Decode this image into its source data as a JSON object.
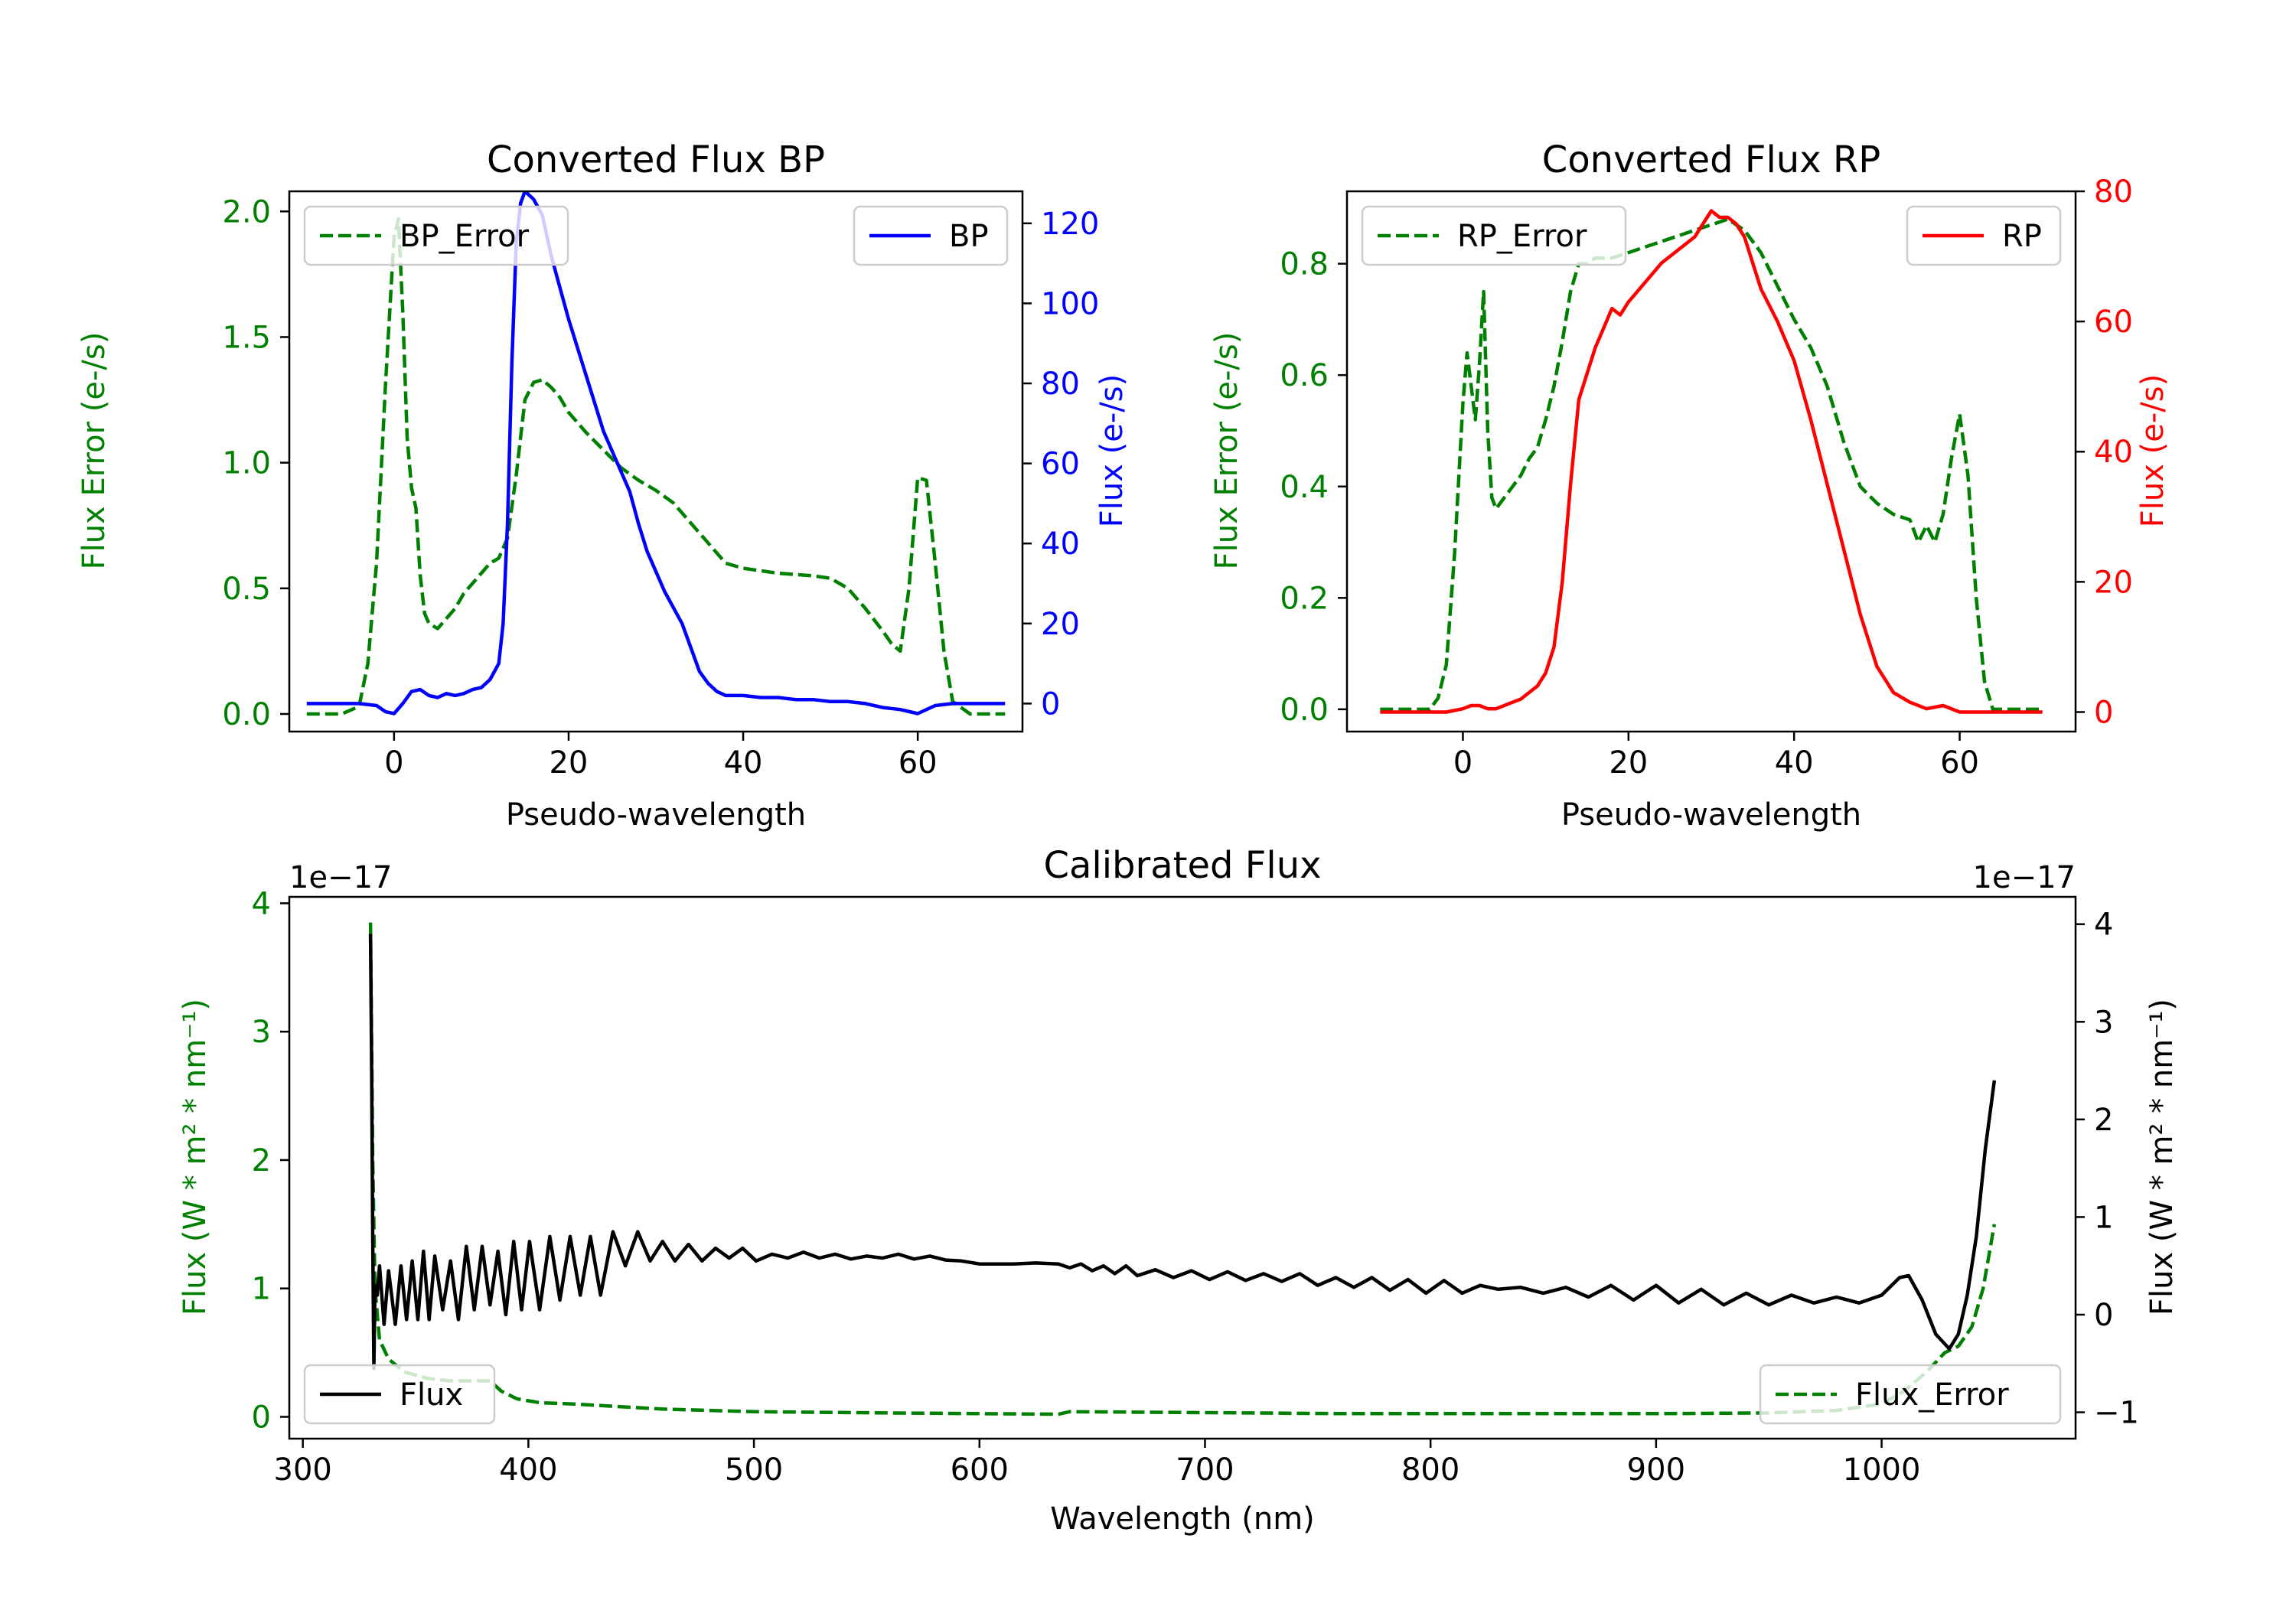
{
  "colors": {
    "green": "#008000",
    "blue": "#0000ff",
    "red": "#ff0000",
    "black": "#000000",
    "axis": "#000000"
  },
  "chart_data": [
    {
      "type": "line",
      "id": "bp",
      "title": "Converted Flux BP",
      "xlabel": "Pseudo-wavelength",
      "ylabel_left": "Flux Error (e-/s)",
      "ylabel_right": "Flux (e-/s)",
      "xlim": [
        -12,
        72
      ],
      "ylim_left": [
        -0.07,
        2.08
      ],
      "ylim_right": [
        -7,
        128
      ],
      "x_ticks": [
        0,
        20,
        40,
        60
      ],
      "x_tick_labels": [
        "0",
        "20",
        "40",
        "60"
      ],
      "y_left_ticks": [
        0.0,
        0.5,
        1.0,
        1.5,
        2.0
      ],
      "y_left_tick_labels": [
        "0.0",
        "0.5",
        "1.0",
        "1.5",
        "2.0"
      ],
      "y_right_ticks": [
        0,
        20,
        40,
        60,
        80,
        100,
        120
      ],
      "y_right_tick_labels": [
        "0",
        "20",
        "40",
        "60",
        "80",
        "100",
        "120"
      ],
      "series": [
        {
          "name": "BP_Error",
          "axis": "left",
          "color": "#008000",
          "style": "dashed",
          "legend": "BP_Error",
          "legend_position": "top-left",
          "x": [
            -10,
            -6,
            -4,
            -3,
            -2,
            -1,
            0,
            0.5,
            1,
            1.5,
            2,
            2.5,
            3,
            3.5,
            4,
            5,
            6,
            7,
            8,
            9,
            10,
            11,
            12,
            13,
            14,
            15,
            16,
            17,
            18,
            19,
            20,
            22,
            24,
            26,
            28,
            30,
            32,
            34,
            36,
            38,
            40,
            44,
            48,
            50,
            52,
            54,
            56,
            57,
            58,
            59,
            60,
            61,
            62,
            63,
            64,
            66,
            68,
            70
          ],
          "y": [
            0.0,
            0.0,
            0.03,
            0.2,
            0.6,
            1.3,
            1.9,
            1.97,
            1.6,
            1.1,
            0.9,
            0.82,
            0.55,
            0.4,
            0.36,
            0.34,
            0.38,
            0.42,
            0.48,
            0.52,
            0.56,
            0.6,
            0.62,
            0.7,
            0.95,
            1.25,
            1.32,
            1.33,
            1.3,
            1.26,
            1.2,
            1.12,
            1.05,
            0.98,
            0.93,
            0.89,
            0.84,
            0.76,
            0.68,
            0.6,
            0.58,
            0.56,
            0.55,
            0.54,
            0.5,
            0.42,
            0.33,
            0.28,
            0.25,
            0.5,
            0.94,
            0.93,
            0.6,
            0.25,
            0.05,
            0.0,
            0.0,
            0.0
          ]
        },
        {
          "name": "BP",
          "axis": "right",
          "color": "#0000ff",
          "style": "solid",
          "legend": "BP",
          "legend_position": "top-right",
          "x": [
            -10,
            -6,
            -4,
            -2,
            -1,
            0,
            1,
            2,
            3,
            4,
            5,
            6,
            7,
            8,
            9,
            10,
            11,
            12,
            12.5,
            13,
            13.5,
            14,
            14.5,
            15,
            15.5,
            16,
            17,
            18,
            19,
            20,
            21,
            22,
            23,
            24,
            25,
            26,
            27,
            28,
            29,
            30,
            31,
            32,
            33,
            34,
            35,
            36,
            37,
            38,
            40,
            42,
            44,
            46,
            48,
            50,
            52,
            54,
            56,
            58,
            60,
            62,
            64,
            66,
            70
          ],
          "y": [
            0,
            0,
            0,
            -0.5,
            -2,
            -2.5,
            0,
            3,
            3.5,
            2,
            1.5,
            2.5,
            2,
            2.5,
            3.5,
            4,
            6,
            10,
            20,
            45,
            85,
            115,
            125,
            128,
            127,
            126,
            122,
            112,
            104,
            96,
            89,
            82,
            75,
            68,
            63,
            58,
            53,
            45,
            38,
            33,
            28,
            24,
            20,
            14,
            8,
            5,
            3,
            2,
            2,
            1.5,
            1.5,
            1,
            1,
            0.5,
            0.5,
            0,
            -1,
            -1.5,
            -2.5,
            -0.5,
            0,
            0,
            0
          ]
        }
      ]
    },
    {
      "type": "line",
      "id": "rp",
      "title": "Converted Flux RP",
      "xlabel": "Pseudo-wavelength",
      "ylabel_left": "Flux Error (e-/s)",
      "ylabel_right": "Flux (e-/s)",
      "xlim": [
        -14,
        74
      ],
      "ylim_left": [
        -0.04,
        0.93
      ],
      "ylim_right": [
        -3,
        80
      ],
      "x_ticks": [
        0,
        20,
        40,
        60
      ],
      "x_tick_labels": [
        "0",
        "20",
        "40",
        "60"
      ],
      "y_left_ticks": [
        0.0,
        0.2,
        0.4,
        0.6,
        0.8
      ],
      "y_left_tick_labels": [
        "0.0",
        "0.2",
        "0.4",
        "0.6",
        "0.8"
      ],
      "y_right_ticks": [
        0,
        20,
        40,
        60,
        80
      ],
      "y_right_tick_labels": [
        "0",
        "20",
        "40",
        "60",
        "80"
      ],
      "series": [
        {
          "name": "RP_Error",
          "axis": "left",
          "color": "#008000",
          "style": "dashed",
          "legend": "RP_Error",
          "legend_position": "top-left",
          "x": [
            -10,
            -6,
            -4,
            -3,
            -2,
            -1,
            0,
            0.5,
            1,
            1.5,
            2,
            2.5,
            3,
            3.5,
            4,
            5,
            6,
            7,
            8,
            9,
            10,
            11,
            12,
            13,
            14,
            15,
            16,
            18,
            20,
            22,
            24,
            26,
            28,
            30,
            32,
            34,
            36,
            38,
            40,
            42,
            44,
            46,
            48,
            50,
            52,
            54,
            55,
            56,
            57,
            58,
            59,
            60,
            61,
            62,
            63,
            64,
            66,
            70
          ],
          "y": [
            0.0,
            0.0,
            0.0,
            0.02,
            0.08,
            0.28,
            0.55,
            0.64,
            0.58,
            0.52,
            0.62,
            0.75,
            0.5,
            0.38,
            0.36,
            0.38,
            0.4,
            0.42,
            0.45,
            0.47,
            0.52,
            0.58,
            0.66,
            0.75,
            0.8,
            0.8,
            0.81,
            0.81,
            0.82,
            0.83,
            0.84,
            0.85,
            0.86,
            0.87,
            0.88,
            0.86,
            0.82,
            0.76,
            0.7,
            0.65,
            0.58,
            0.48,
            0.4,
            0.37,
            0.35,
            0.34,
            0.3,
            0.33,
            0.3,
            0.35,
            0.45,
            0.53,
            0.42,
            0.2,
            0.05,
            0.0,
            0.0,
            0.0
          ]
        },
        {
          "name": "RP",
          "axis": "right",
          "color": "#ff0000",
          "style": "solid",
          "legend": "RP",
          "legend_position": "top-right",
          "x": [
            -10,
            -6,
            -4,
            -2,
            0,
            1,
            2,
            3,
            4,
            5,
            6,
            7,
            8,
            9,
            10,
            11,
            12,
            13,
            14,
            15,
            16,
            17,
            18,
            19,
            20,
            22,
            24,
            26,
            28,
            30,
            31,
            32,
            33,
            34,
            35,
            36,
            38,
            40,
            42,
            44,
            46,
            48,
            50,
            52,
            54,
            56,
            58,
            60,
            62,
            66,
            70
          ],
          "y": [
            0,
            0,
            0,
            0,
            0.5,
            1,
            1,
            0.5,
            0.5,
            1,
            1.5,
            2,
            3,
            4,
            6,
            10,
            20,
            35,
            48,
            52,
            56,
            59,
            62,
            61,
            63,
            66,
            69,
            71,
            73,
            77,
            76,
            76,
            75,
            73,
            69,
            65,
            60,
            54,
            45,
            35,
            25,
            15,
            7,
            3,
            1.5,
            0.5,
            1,
            0,
            0,
            0,
            0
          ]
        }
      ]
    },
    {
      "type": "line",
      "id": "calibrated",
      "title": "Calibrated Flux",
      "xlabel": "Wavelength (nm)",
      "ylabel_left": "Flux (W * m² * nm⁻¹)",
      "ylabel_right": "Flux (W * m² * nm⁻¹)",
      "offset_left": "1e−17",
      "offset_right": "1e−17",
      "xlim": [
        294,
        1086
      ],
      "ylim_left": [
        -0.17,
        4.05
      ],
      "ylim_right": [
        -1.27,
        4.28
      ],
      "x_ticks": [
        300,
        400,
        500,
        600,
        700,
        800,
        900,
        1000
      ],
      "x_tick_labels": [
        "300",
        "400",
        "500",
        "600",
        "700",
        "800",
        "900",
        "1000"
      ],
      "y_left_ticks": [
        0,
        1,
        2,
        3,
        4
      ],
      "y_left_tick_labels": [
        "0",
        "1",
        "2",
        "3",
        "4"
      ],
      "y_right_ticks": [
        -1,
        0,
        1,
        2,
        3,
        4
      ],
      "y_right_tick_labels": [
        "−1",
        "0",
        "1",
        "2",
        "3",
        "4"
      ],
      "series": [
        {
          "name": "Flux",
          "axis": "right",
          "color": "#000000",
          "style": "solid",
          "legend": "Flux",
          "legend_position": "bottom-left",
          "x": [
            330,
            330.5,
            331,
            331.5,
            332,
            333,
            334,
            336,
            338,
            341,
            343.5,
            346,
            348.5,
            351,
            353.5,
            356,
            358.5,
            362,
            365.5,
            369,
            372.5,
            376,
            379.5,
            383,
            386.5,
            390,
            393.5,
            397,
            400.5,
            405,
            409.5,
            414,
            418.5,
            423,
            427.5,
            432,
            437.5,
            443,
            448.5,
            454,
            459.5,
            465,
            471,
            477,
            483,
            489,
            495,
            501,
            508,
            515,
            522,
            529,
            536,
            543,
            550,
            557,
            564,
            571,
            578,
            585,
            592,
            600,
            615,
            625,
            635,
            640,
            645,
            650,
            655,
            660,
            665,
            670,
            678,
            686,
            694,
            702,
            710,
            718,
            726,
            734,
            742,
            750,
            758,
            766,
            774,
            782,
            790,
            798,
            806,
            814,
            822,
            830,
            840,
            850,
            860,
            870,
            880,
            890,
            900,
            910,
            920,
            930,
            940,
            950,
            960,
            970,
            980,
            990,
            1000,
            1008,
            1012,
            1018,
            1024,
            1030,
            1034,
            1038,
            1042,
            1046,
            1050
          ],
          "y": [
            3.9,
            2.5,
            0.8,
            -0.55,
            0.3,
            0.2,
            0.5,
            -0.1,
            0.45,
            -0.1,
            0.5,
            -0.05,
            0.55,
            -0.05,
            0.65,
            -0.05,
            0.6,
            0.05,
            0.55,
            -0.05,
            0.7,
            0.05,
            0.7,
            0.1,
            0.65,
            0.0,
            0.75,
            0.05,
            0.75,
            0.05,
            0.8,
            0.15,
            0.8,
            0.2,
            0.8,
            0.2,
            0.85,
            0.5,
            0.85,
            0.55,
            0.75,
            0.55,
            0.72,
            0.55,
            0.68,
            0.58,
            0.68,
            0.55,
            0.62,
            0.58,
            0.64,
            0.58,
            0.62,
            0.57,
            0.6,
            0.58,
            0.62,
            0.57,
            0.6,
            0.56,
            0.55,
            0.52,
            0.52,
            0.53,
            0.52,
            0.48,
            0.52,
            0.45,
            0.5,
            0.42,
            0.5,
            0.4,
            0.46,
            0.38,
            0.45,
            0.36,
            0.44,
            0.35,
            0.42,
            0.34,
            0.42,
            0.3,
            0.38,
            0.28,
            0.38,
            0.25,
            0.36,
            0.22,
            0.35,
            0.22,
            0.3,
            0.26,
            0.28,
            0.22,
            0.28,
            0.18,
            0.3,
            0.15,
            0.3,
            0.12,
            0.26,
            0.1,
            0.22,
            0.1,
            0.2,
            0.12,
            0.18,
            0.12,
            0.2,
            0.38,
            0.4,
            0.15,
            -0.2,
            -0.35,
            -0.2,
            0.2,
            0.8,
            1.7,
            2.4
          ]
        },
        {
          "name": "Flux_Error",
          "axis": "left",
          "color": "#008000",
          "style": "dashed",
          "legend": "Flux_Error",
          "legend_position": "bottom-right",
          "x": [
            330,
            331,
            332,
            334,
            338,
            345,
            355,
            365,
            375,
            383,
            388,
            395,
            405,
            420,
            440,
            460,
            480,
            500,
            530,
            560,
            600,
            635,
            640,
            680,
            720,
            760,
            800,
            850,
            900,
            950,
            980,
            1000,
            1010,
            1020,
            1028,
            1034,
            1040,
            1045,
            1050
          ],
          "y": [
            3.85,
            2.0,
            1.0,
            0.6,
            0.45,
            0.35,
            0.3,
            0.28,
            0.28,
            0.28,
            0.2,
            0.14,
            0.11,
            0.1,
            0.08,
            0.06,
            0.05,
            0.04,
            0.035,
            0.03,
            0.025,
            0.02,
            0.04,
            0.035,
            0.03,
            0.025,
            0.025,
            0.025,
            0.025,
            0.03,
            0.05,
            0.1,
            0.2,
            0.35,
            0.5,
            0.55,
            0.7,
            1.0,
            1.5
          ]
        }
      ]
    }
  ]
}
